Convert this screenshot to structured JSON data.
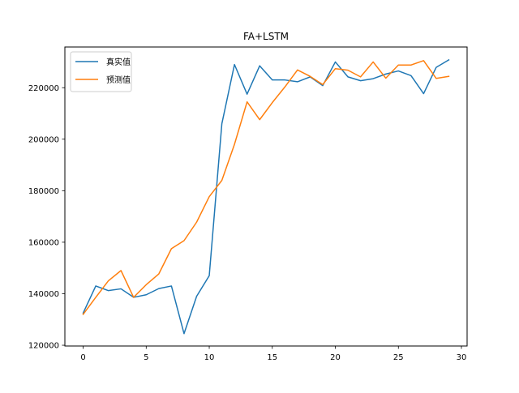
{
  "chart_data": {
    "type": "line",
    "title": "FA+LSTM",
    "xlabel": "",
    "ylabel": "",
    "xlim": [
      -1.45,
      30.45
    ],
    "ylim": [
      119700,
      235800
    ],
    "xticks": [
      0,
      5,
      10,
      15,
      20,
      25,
      30
    ],
    "yticks": [
      120000,
      140000,
      160000,
      180000,
      200000,
      220000
    ],
    "grid": false,
    "legend_position": "upper left",
    "x": [
      0,
      1,
      2,
      3,
      4,
      5,
      6,
      7,
      8,
      9,
      10,
      11,
      12,
      13,
      14,
      15,
      16,
      17,
      18,
      19,
      20,
      21,
      22,
      23,
      24,
      25,
      26,
      27,
      28,
      29
    ],
    "series": [
      {
        "name": "真实值",
        "color": "#1f77b4",
        "values": [
          132500,
          143000,
          141200,
          141900,
          138600,
          139600,
          142000,
          143000,
          124500,
          139000,
          147000,
          206000,
          229000,
          217500,
          228500,
          223000,
          223000,
          222300,
          224200,
          220800,
          230000,
          224200,
          222700,
          223500,
          225300,
          226500,
          224700,
          217700,
          227900,
          230800
        ]
      },
      {
        "name": "预测值",
        "color": "#ff7f0e",
        "values": [
          132000,
          138600,
          145000,
          149000,
          138600,
          143500,
          147700,
          157500,
          160600,
          167800,
          177700,
          184000,
          198000,
          214500,
          207600,
          214200,
          220300,
          226900,
          224400,
          221200,
          227400,
          226800,
          224200,
          230000,
          223700,
          228800,
          228800,
          230500,
          223600,
          224400
        ]
      }
    ]
  }
}
